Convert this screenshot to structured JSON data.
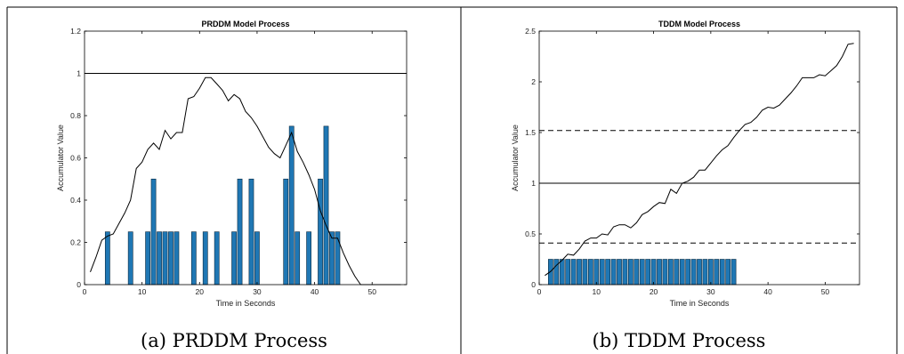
{
  "captions": [
    "(a) PRDDM Process",
    "(b) TDDM Process"
  ],
  "colors": {
    "bar": "#1f77b4",
    "bar_edge": "#0b2a40",
    "line": "#000000"
  },
  "chart_data": [
    {
      "type": "bar",
      "title": "PRDDM Model Process",
      "xlabel": "Time in Seconds",
      "ylabel": "Accumulator Value",
      "xlim": [
        0,
        56
      ],
      "ylim": [
        0,
        1.2
      ],
      "xticks": [
        0,
        10,
        20,
        30,
        40,
        50
      ],
      "yticks": [
        0,
        0.2,
        0.4,
        0.6,
        0.8,
        1,
        1.2
      ],
      "ytick_labels": [
        "0",
        "0.2",
        "0.4",
        "0.6",
        "0.8",
        "1",
        "1.2"
      ],
      "grid": false,
      "thresholds": [
        {
          "y": 1,
          "style": "solid"
        }
      ],
      "bars": [
        {
          "x": 4,
          "y": 0.25
        },
        {
          "x": 8,
          "y": 0.25
        },
        {
          "x": 11,
          "y": 0.25
        },
        {
          "x": 12,
          "y": 0.5
        },
        {
          "x": 13,
          "y": 0.25
        },
        {
          "x": 14,
          "y": 0.25
        },
        {
          "x": 15,
          "y": 0.25
        },
        {
          "x": 16,
          "y": 0.25
        },
        {
          "x": 19,
          "y": 0.25
        },
        {
          "x": 21,
          "y": 0.25
        },
        {
          "x": 23,
          "y": 0.25
        },
        {
          "x": 26,
          "y": 0.25
        },
        {
          "x": 27,
          "y": 0.5
        },
        {
          "x": 29,
          "y": 0.5
        },
        {
          "x": 30,
          "y": 0.25
        },
        {
          "x": 35,
          "y": 0.5
        },
        {
          "x": 36,
          "y": 0.75
        },
        {
          "x": 37,
          "y": 0.25
        },
        {
          "x": 39,
          "y": 0.25
        },
        {
          "x": 41,
          "y": 0.5
        },
        {
          "x": 42,
          "y": 0.75
        },
        {
          "x": 43,
          "y": 0.25
        },
        {
          "x": 44,
          "y": 0.25
        }
      ],
      "line": {
        "x": [
          1,
          2,
          3,
          4,
          5,
          6,
          7,
          8,
          9,
          10,
          11,
          12,
          13,
          14,
          15,
          16,
          17,
          18,
          19,
          20,
          21,
          22,
          23,
          24,
          25,
          26,
          27,
          28,
          29,
          30,
          31,
          32,
          33,
          34,
          35,
          36,
          37,
          38,
          39,
          40,
          41,
          42,
          43,
          44,
          45,
          46,
          47,
          48,
          49,
          50,
          51,
          52,
          53,
          54,
          55
        ],
        "y": [
          0.06,
          0.13,
          0.21,
          0.23,
          0.24,
          0.29,
          0.34,
          0.4,
          0.55,
          0.58,
          0.64,
          0.67,
          0.64,
          0.73,
          0.69,
          0.72,
          0.72,
          0.88,
          0.89,
          0.93,
          0.98,
          0.98,
          0.95,
          0.92,
          0.87,
          0.9,
          0.88,
          0.82,
          0.79,
          0.75,
          0.7,
          0.65,
          0.62,
          0.6,
          0.66,
          0.72,
          0.63,
          0.58,
          0.52,
          0.45,
          0.35,
          0.28,
          0.22,
          0.22,
          0.15,
          0.09,
          0.04,
          0.0,
          0.0,
          0.0,
          0.0,
          0.0,
          0.0,
          0.0,
          0.0
        ]
      }
    },
    {
      "type": "bar",
      "title": "TDDM Model Process",
      "xlabel": "Time in Seconds",
      "ylabel": "Accumulator Value",
      "xlim": [
        0,
        56
      ],
      "ylim": [
        0,
        2.5
      ],
      "xticks": [
        0,
        10,
        20,
        30,
        40,
        50
      ],
      "yticks": [
        0,
        0.5,
        1,
        1.5,
        2,
        2.5
      ],
      "ytick_labels": [
        "0",
        "0.5",
        "1",
        "1.5",
        "2",
        "2.5"
      ],
      "grid": false,
      "thresholds": [
        {
          "y": 1,
          "style": "solid"
        },
        {
          "y": 1.52,
          "style": "dashed"
        },
        {
          "y": 0.41,
          "style": "dashed"
        }
      ],
      "bars": [
        {
          "x": 2,
          "y": 0.25
        },
        {
          "x": 3,
          "y": 0.25
        },
        {
          "x": 4,
          "y": 0.25
        },
        {
          "x": 5,
          "y": 0.25
        },
        {
          "x": 6,
          "y": 0.25
        },
        {
          "x": 7,
          "y": 0.25
        },
        {
          "x": 8,
          "y": 0.25
        },
        {
          "x": 9,
          "y": 0.25
        },
        {
          "x": 10,
          "y": 0.25
        },
        {
          "x": 11,
          "y": 0.25
        },
        {
          "x": 12,
          "y": 0.25
        },
        {
          "x": 13,
          "y": 0.25
        },
        {
          "x": 14,
          "y": 0.25
        },
        {
          "x": 15,
          "y": 0.25
        },
        {
          "x": 16,
          "y": 0.25
        },
        {
          "x": 17,
          "y": 0.25
        },
        {
          "x": 18,
          "y": 0.25
        },
        {
          "x": 19,
          "y": 0.25
        },
        {
          "x": 20,
          "y": 0.25
        },
        {
          "x": 21,
          "y": 0.25
        },
        {
          "x": 22,
          "y": 0.25
        },
        {
          "x": 23,
          "y": 0.25
        },
        {
          "x": 24,
          "y": 0.25
        },
        {
          "x": 25,
          "y": 0.25
        },
        {
          "x": 26,
          "y": 0.25
        },
        {
          "x": 27,
          "y": 0.25
        },
        {
          "x": 28,
          "y": 0.25
        },
        {
          "x": 29,
          "y": 0.25
        },
        {
          "x": 30,
          "y": 0.25
        },
        {
          "x": 31,
          "y": 0.25
        },
        {
          "x": 32,
          "y": 0.25
        },
        {
          "x": 33,
          "y": 0.25
        },
        {
          "x": 34,
          "y": 0.25
        }
      ],
      "line": {
        "x": [
          1,
          2,
          3,
          4,
          5,
          6,
          7,
          8,
          9,
          10,
          11,
          12,
          13,
          14,
          15,
          16,
          17,
          18,
          19,
          20,
          21,
          22,
          23,
          24,
          25,
          26,
          27,
          28,
          29,
          30,
          31,
          32,
          33,
          34,
          35,
          36,
          37,
          38,
          39,
          40,
          41,
          42,
          43,
          44,
          45,
          46,
          47,
          48,
          49,
          50,
          51,
          52,
          53,
          54,
          55
        ],
        "y": [
          0.09,
          0.13,
          0.19,
          0.24,
          0.3,
          0.29,
          0.35,
          0.43,
          0.46,
          0.46,
          0.5,
          0.49,
          0.57,
          0.59,
          0.59,
          0.56,
          0.61,
          0.69,
          0.72,
          0.77,
          0.81,
          0.8,
          0.94,
          0.9,
          1.0,
          1.02,
          1.06,
          1.13,
          1.13,
          1.2,
          1.27,
          1.33,
          1.37,
          1.45,
          1.52,
          1.58,
          1.6,
          1.65,
          1.72,
          1.75,
          1.74,
          1.77,
          1.83,
          1.89,
          1.96,
          2.04,
          2.04,
          2.04,
          2.07,
          2.06,
          2.11,
          2.16,
          2.25,
          2.37,
          2.38
        ]
      }
    }
  ]
}
